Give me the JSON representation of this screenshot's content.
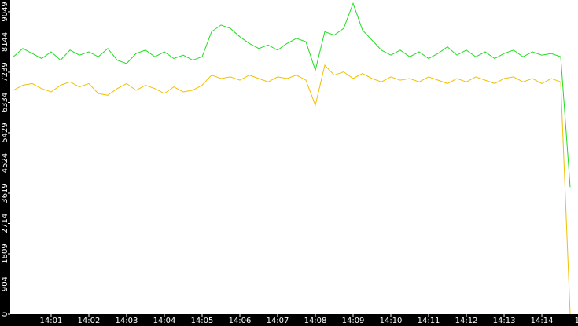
{
  "chart_data": {
    "type": "line",
    "series": [
      {
        "name": "green",
        "color": "#22dd22",
        "values": [
          7700,
          7950,
          7800,
          7650,
          7850,
          7600,
          7900,
          7750,
          7850,
          7700,
          7950,
          7600,
          7500,
          7800,
          7900,
          7700,
          7850,
          7650,
          7750,
          7600,
          7700,
          8450,
          8650,
          8550,
          8300,
          8100,
          7950,
          8050,
          7900,
          8100,
          8250,
          8150,
          7300,
          8450,
          8350,
          8550,
          9300,
          8500,
          8200,
          7900,
          7750,
          7900,
          7700,
          7850,
          7650,
          7800,
          8000,
          7750,
          7900,
          7700,
          7850,
          7650,
          7800,
          7900,
          7700,
          7850,
          7750,
          7800,
          7700,
          3800
        ]
      },
      {
        "name": "yellow",
        "color": "#f0c000",
        "values": [
          6700,
          6850,
          6900,
          6750,
          6650,
          6850,
          6950,
          6800,
          6900,
          6600,
          6550,
          6750,
          6900,
          6700,
          6850,
          6750,
          6600,
          6800,
          6650,
          6700,
          6850,
          7150,
          7050,
          7100,
          7000,
          7150,
          7050,
          6950,
          7100,
          7050,
          7150,
          7000,
          6250,
          7450,
          7150,
          7250,
          7050,
          7200,
          7050,
          6950,
          7100,
          7000,
          7050,
          6950,
          7100,
          7000,
          6900,
          7050,
          6950,
          7100,
          7000,
          6900,
          7050,
          7100,
          6950,
          7050,
          6900,
          7050,
          6950,
          0
        ]
      }
    ],
    "xlim": [
      -0.33,
      59.83
    ],
    "xticks": [
      {
        "value": 4,
        "label": "14:01"
      },
      {
        "value": 8,
        "label": "14:02"
      },
      {
        "value": 12,
        "label": "14:03"
      },
      {
        "value": 16,
        "label": "14:04"
      },
      {
        "value": 20,
        "label": "14:05"
      },
      {
        "value": 24,
        "label": "14:06"
      },
      {
        "value": 28,
        "label": "14:07"
      },
      {
        "value": 32,
        "label": "14:08"
      },
      {
        "value": 36,
        "label": "14:09"
      },
      {
        "value": 40,
        "label": "14:10"
      },
      {
        "value": 44,
        "label": "14:11"
      },
      {
        "value": 48,
        "label": "14:12"
      },
      {
        "value": 52,
        "label": "14:13"
      },
      {
        "value": 56,
        "label": "14:14"
      },
      {
        "value": 60,
        "label": "14"
      }
    ],
    "ylim": [
      0,
      9400
    ],
    "yticks": [
      0,
      904,
      1809,
      2714,
      3619,
      4524,
      5429,
      6334,
      7239,
      8144,
      9049
    ]
  }
}
